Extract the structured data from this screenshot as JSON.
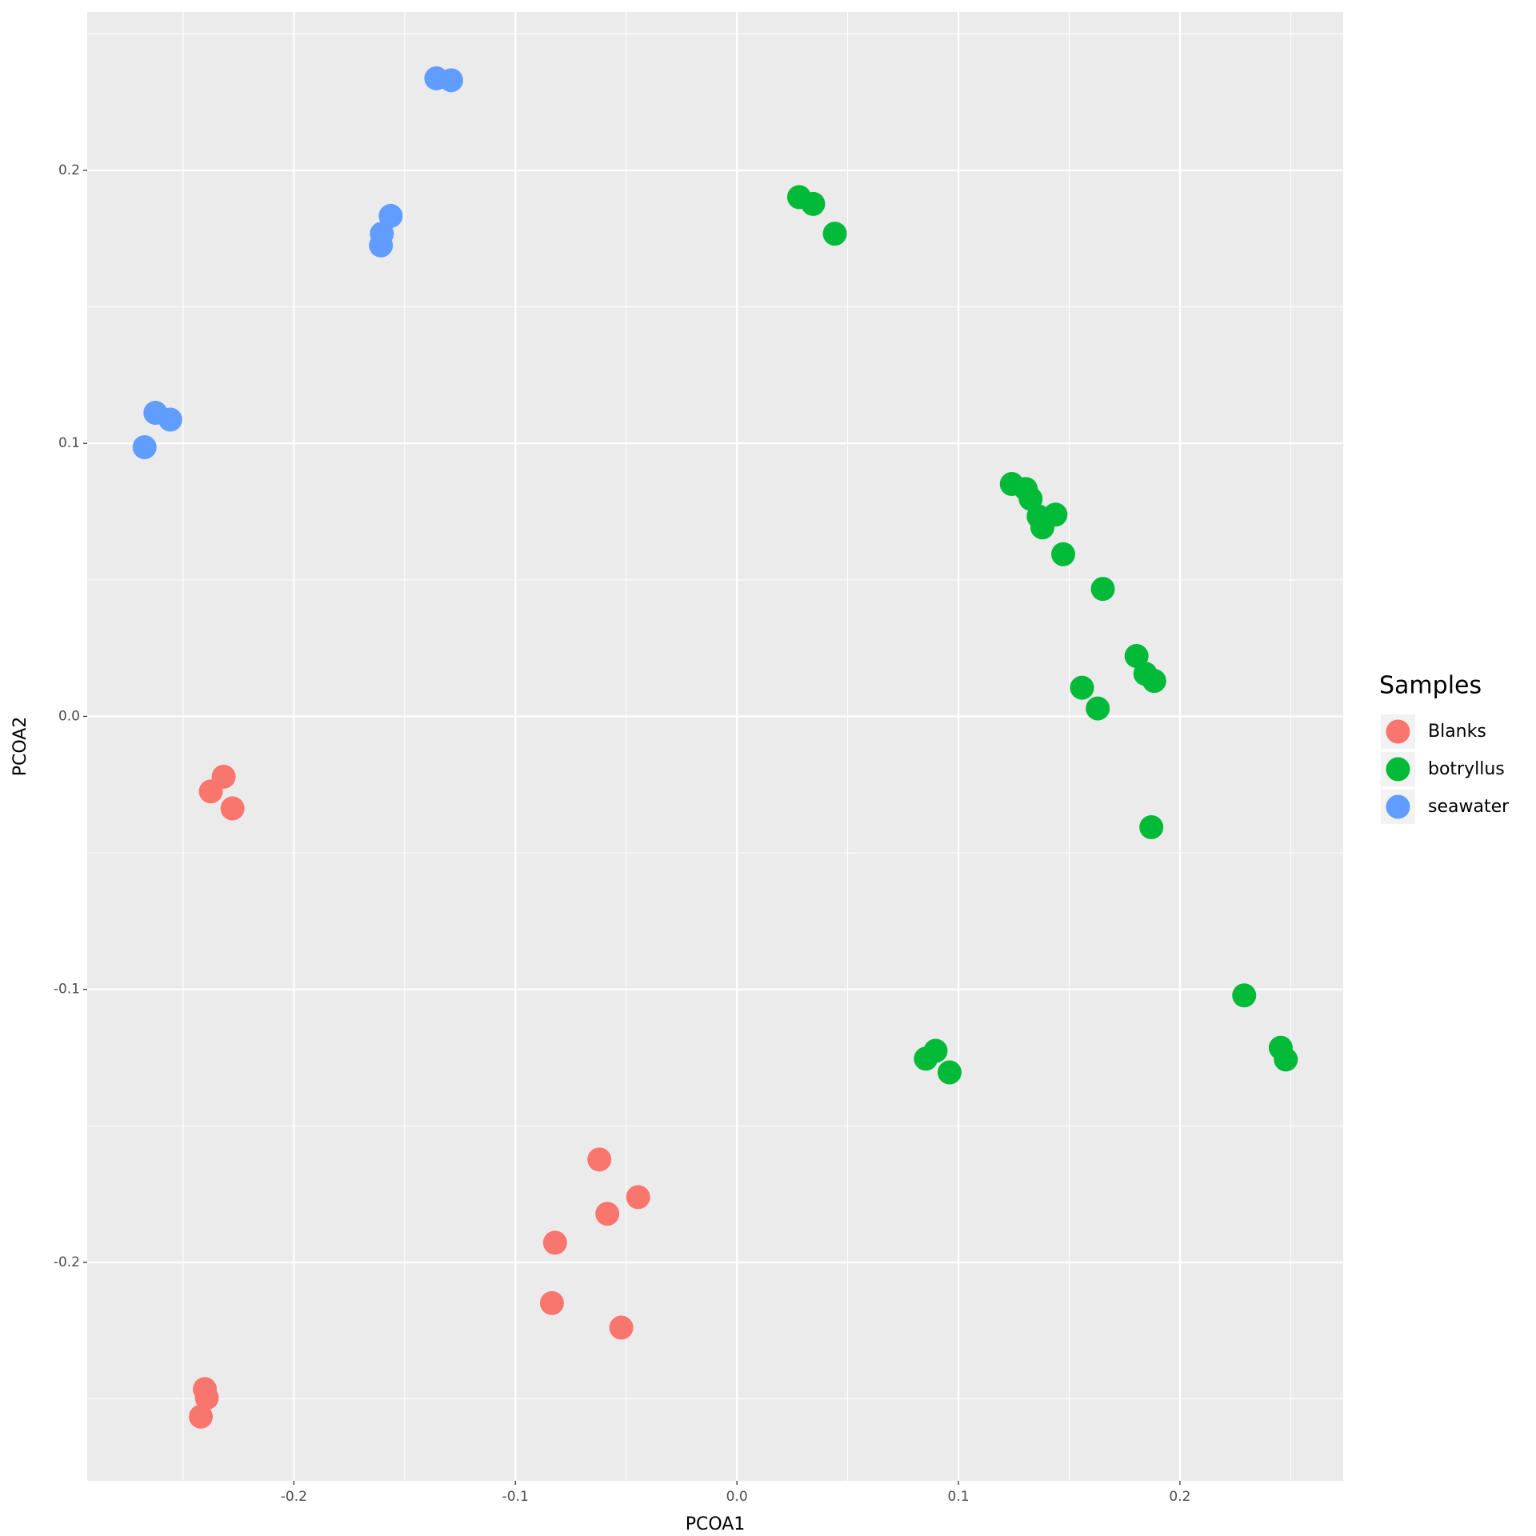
{
  "chart_data": {
    "type": "scatter",
    "x_label": "PCOA1",
    "y_label": "PCOA2",
    "legend_title": "Samples",
    "legend_position": "right",
    "xlim": [
      -0.2933,
      0.2737
    ],
    "ylim": [
      -0.28,
      0.258
    ],
    "xticks": [
      -0.2,
      -0.1,
      {
        "value": 0,
        "label": "0.0"
      },
      0.1,
      0.2
    ],
    "yticks": [
      -0.2,
      -0.1,
      {
        "value": 0,
        "label": "0.0"
      },
      0.1,
      0.2
    ],
    "x_minor_ticks": [
      -0.25,
      -0.15,
      -0.05,
      0.05,
      0.15,
      0.25
    ],
    "y_minor_ticks": [
      -0.25,
      -0.15,
      -0.05,
      0.05,
      0.15,
      0.25
    ],
    "grid": true,
    "series": [
      {
        "name": "Blanks",
        "color": "#f8766d",
        "x": [
          -0.2317,
          -0.2375,
          -0.2277,
          -0.0621,
          -0.0446,
          -0.0585,
          -0.0821,
          -0.0835,
          -0.0522,
          -0.2402,
          -0.2393,
          -0.242
        ],
        "values": [
          -0.0221,
          -0.0275,
          -0.0337,
          -0.1623,
          -0.1761,
          -0.1822,
          -0.1928,
          -0.2149,
          -0.2239,
          -0.2464,
          -0.2496,
          -0.2565
        ]
      },
      {
        "name": "botryllus",
        "color": "#00ba38",
        "x": [
          0.0281,
          0.0344,
          0.0442,
          0.1241,
          0.1304,
          0.1326,
          0.1362,
          0.1438,
          0.1379,
          0.1473,
          0.1652,
          0.1804,
          0.1844,
          0.1884,
          0.1558,
          0.1629,
          0.1871,
          0.229,
          0.2455,
          0.2478,
          0.0897,
          0.0853,
          0.096
        ],
        "values": [
          0.1902,
          0.1877,
          0.1768,
          0.0851,
          0.0833,
          0.0797,
          0.0732,
          0.0739,
          0.0692,
          0.0594,
          0.0467,
          0.0221,
          0.0156,
          0.013,
          0.0105,
          0.0029,
          -0.0406,
          -0.1022,
          -0.1214,
          -0.1257,
          -0.1225,
          -0.1254,
          -0.1304
        ]
      },
      {
        "name": "seawater",
        "color": "#619cff",
        "x": [
          -0.1357,
          -0.129,
          -0.1563,
          -0.1603,
          -0.1607,
          -0.2625,
          -0.2558,
          -0.2674
        ],
        "values": [
          0.2337,
          0.233,
          0.1833,
          0.1768,
          0.1725,
          0.1112,
          0.1087,
          0.0986
        ]
      }
    ]
  }
}
